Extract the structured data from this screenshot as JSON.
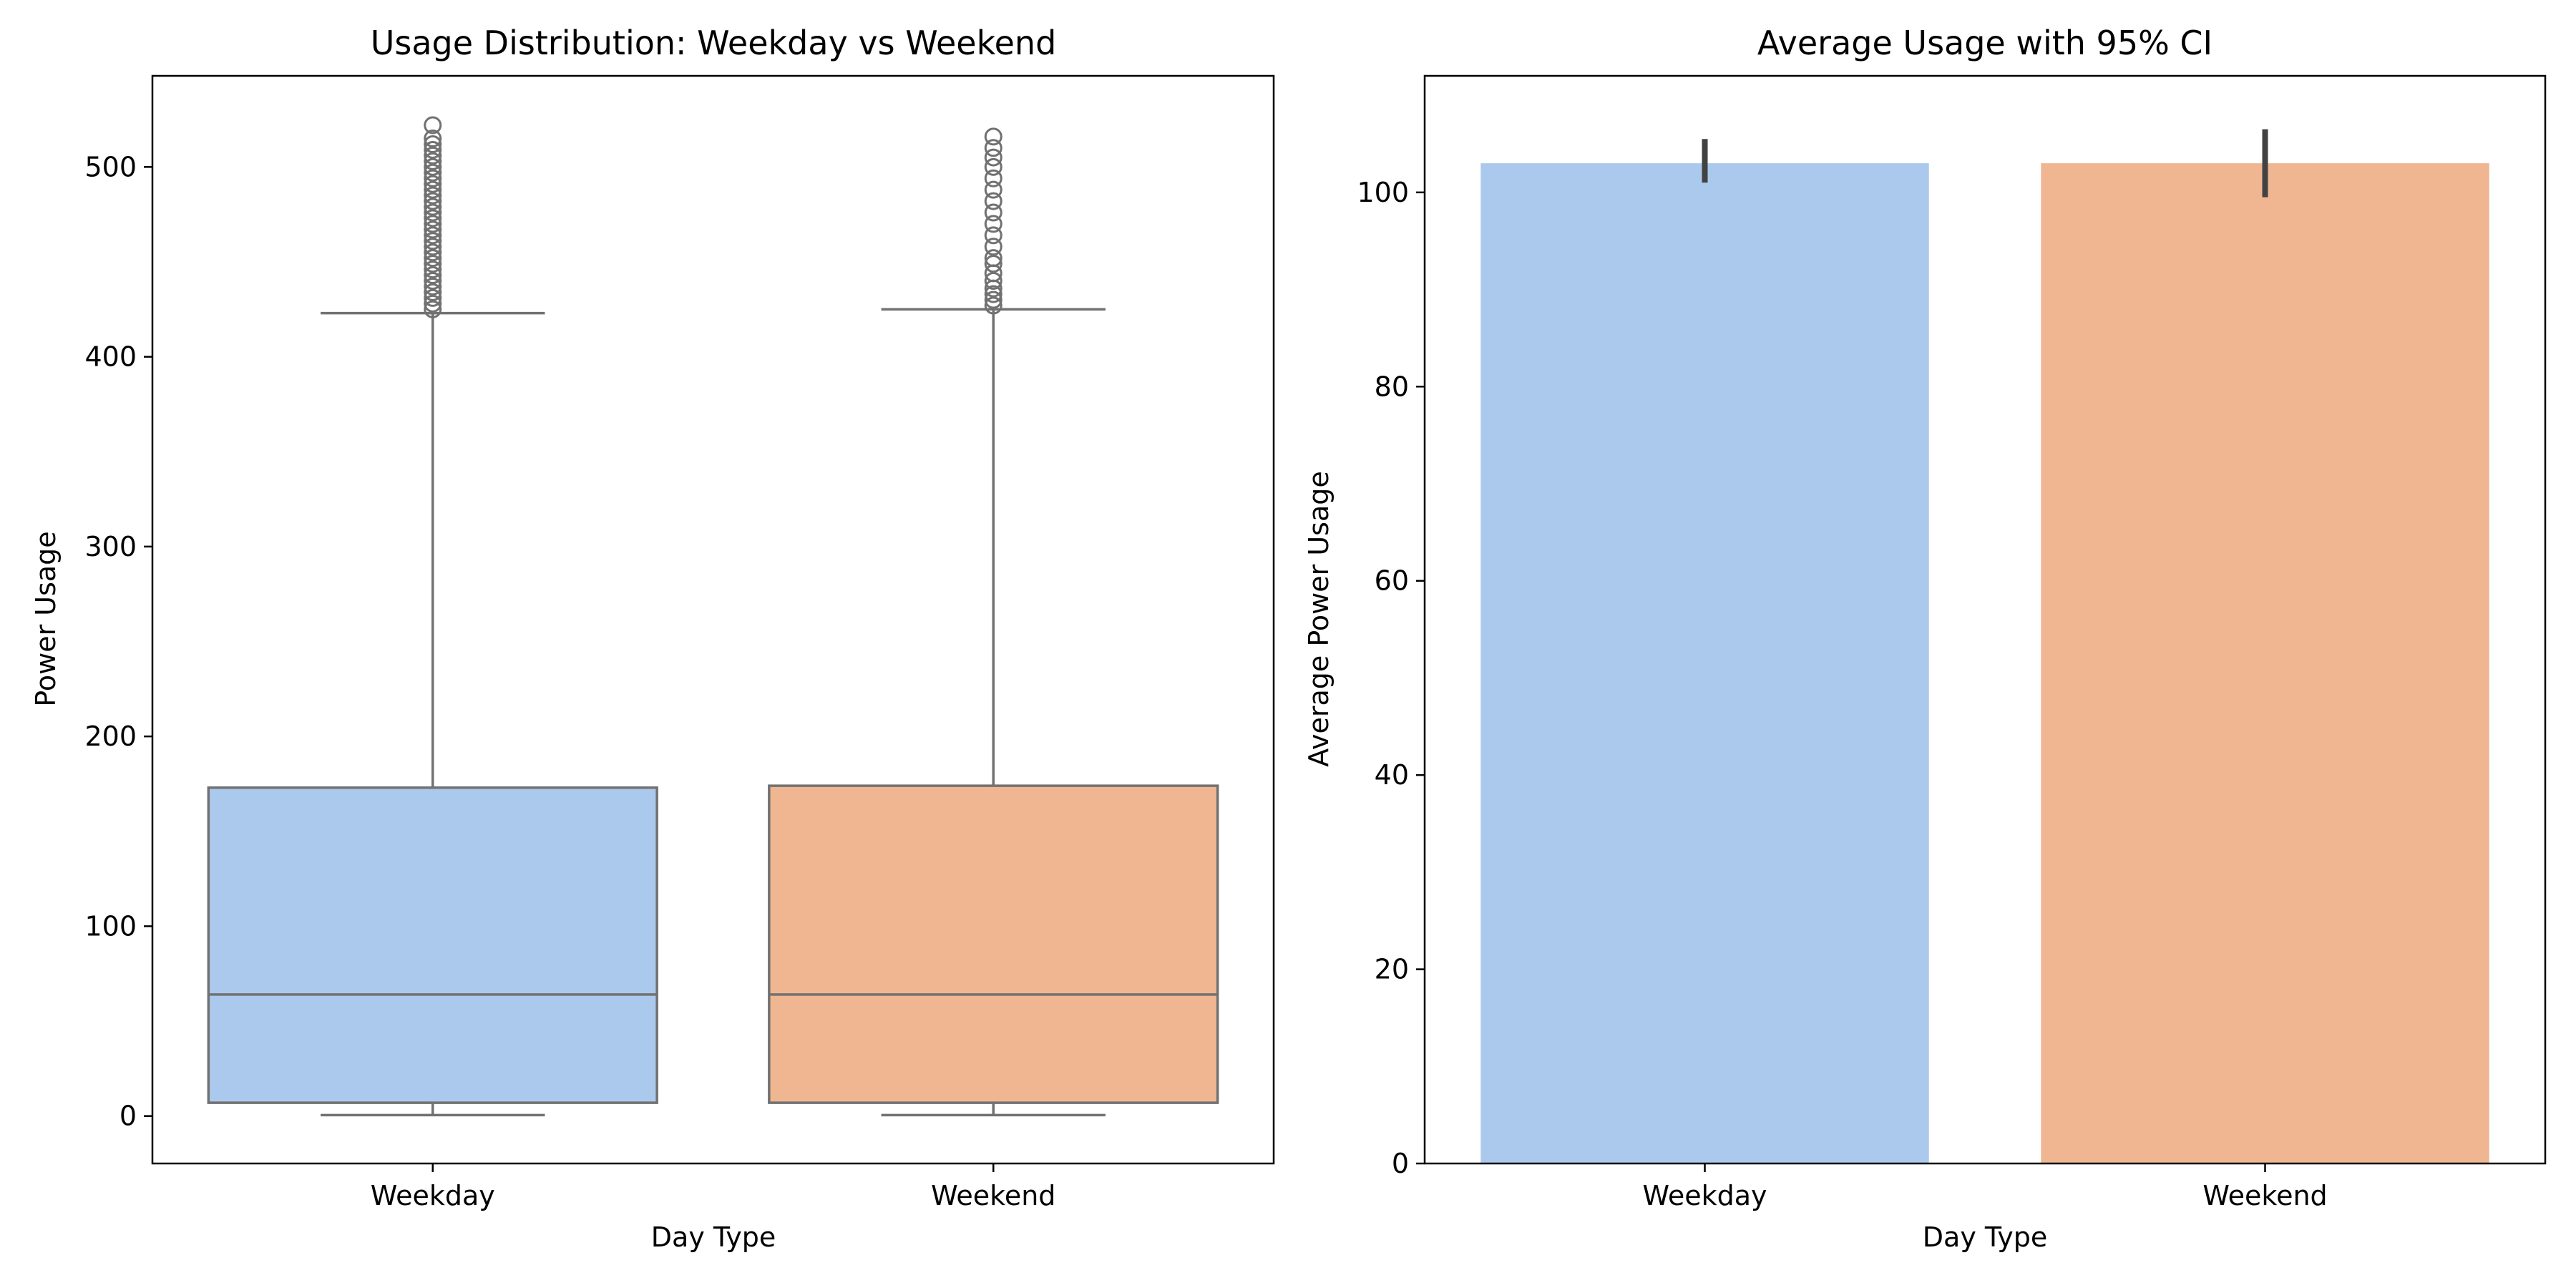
{
  "chart_data": [
    {
      "type": "box",
      "title": "Usage Distribution: Weekday vs Weekend",
      "xlabel": "Day Type",
      "ylabel": "Power Usage",
      "categories": [
        "Weekday",
        "Weekend"
      ],
      "ylim": [
        -25,
        548
      ],
      "yticks": [
        0,
        100,
        200,
        300,
        400,
        500
      ],
      "colors": [
        "#abc9ed",
        "#f0b692"
      ],
      "edge_color": "#717171",
      "grid": false,
      "boxes": [
        {
          "name": "Weekday",
          "whisker_low": 0.5,
          "q1": 7,
          "median": 64,
          "q3": 173,
          "whisker_high": 423,
          "outliers": [
            425,
            428,
            431,
            434,
            437,
            440,
            443,
            446,
            449,
            452,
            455,
            458,
            461,
            464,
            467,
            470,
            473,
            476,
            479,
            482,
            485,
            488,
            491,
            494,
            497,
            500,
            503,
            506,
            509,
            512,
            515,
            522
          ]
        },
        {
          "name": "Weekend",
          "whisker_low": 0.5,
          "q1": 7,
          "median": 64,
          "q3": 174,
          "whisker_high": 425,
          "outliers": [
            427,
            430,
            433,
            436,
            440,
            444,
            449,
            452,
            458,
            464,
            470,
            476,
            482,
            488,
            494,
            500,
            505,
            510,
            516
          ]
        }
      ]
    },
    {
      "type": "bar",
      "title": "Average Usage with 95% CI",
      "xlabel": "Day Type",
      "ylabel": "Average Power Usage",
      "categories": [
        "Weekday",
        "Weekend"
      ],
      "values": [
        103.0,
        103.0
      ],
      "ci": [
        [
          101.0,
          105.5
        ],
        [
          99.5,
          106.5
        ]
      ],
      "ylim": [
        0,
        112
      ],
      "yticks": [
        0,
        20,
        40,
        60,
        80,
        100
      ],
      "colors": [
        "#abc9ed",
        "#f0b692"
      ],
      "errorbar_color": "#424242",
      "grid": false
    }
  ]
}
